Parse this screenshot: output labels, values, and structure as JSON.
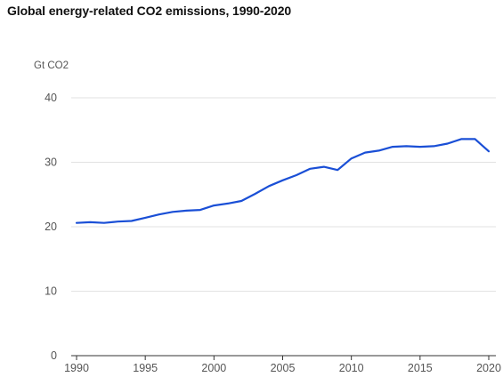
{
  "chart_data": {
    "type": "line",
    "title": "Global energy-related CO2 emissions, 1990-2020",
    "ylabel": "Gt CO2",
    "xlabel": "",
    "xlim": [
      1990,
      2020
    ],
    "ylim": [
      0,
      40
    ],
    "x_ticks": [
      1990,
      1995,
      2000,
      2005,
      2010,
      2015,
      2020
    ],
    "y_ticks": [
      0,
      10,
      20,
      30,
      40
    ],
    "grid": "horizontal",
    "legend": "none",
    "series": [
      {
        "color": "#1a4fd6",
        "x": [
          1990,
          1991,
          1992,
          1993,
          1994,
          1995,
          1996,
          1997,
          1998,
          1999,
          2000,
          2001,
          2002,
          2003,
          2004,
          2005,
          2006,
          2007,
          2008,
          2009,
          2010,
          2011,
          2012,
          2013,
          2014,
          2015,
          2016,
          2017,
          2018,
          2019,
          2020
        ],
        "values": [
          20.6,
          20.7,
          20.6,
          20.8,
          20.9,
          21.4,
          21.9,
          22.3,
          22.5,
          22.6,
          23.3,
          23.6,
          24.0,
          25.1,
          26.3,
          27.2,
          28.0,
          29.0,
          29.3,
          28.8,
          30.6,
          31.5,
          31.8,
          32.4,
          32.5,
          32.4,
          32.5,
          32.9,
          33.6,
          33.6,
          31.7
        ]
      }
    ]
  }
}
